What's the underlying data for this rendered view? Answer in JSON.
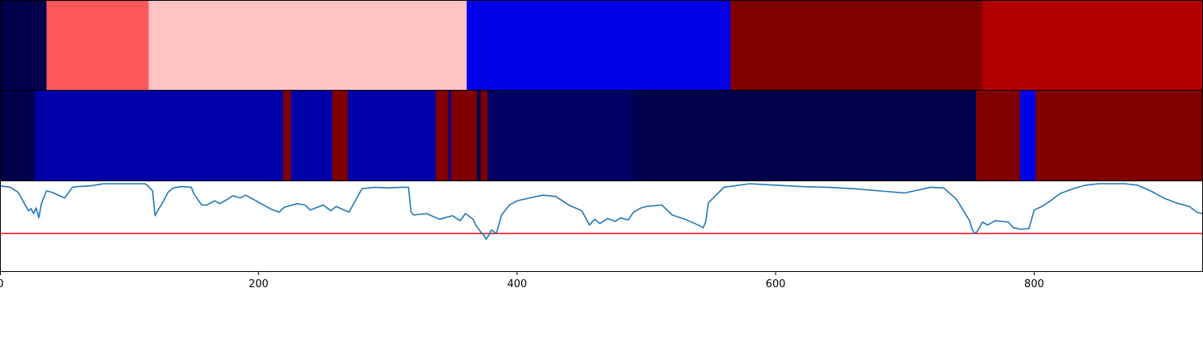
{
  "chart_data": [
    {
      "type": "heatmap",
      "xlim": [
        0,
        930
      ],
      "colormap": "seismic",
      "segments": [
        {
          "start": 0,
          "end": 36,
          "value": 0.02,
          "color": "#00004c"
        },
        {
          "start": 36,
          "end": 115,
          "value": 0.83,
          "color": "#ff5858"
        },
        {
          "start": 115,
          "end": 361,
          "value": 0.62,
          "color": "#ffc3c3"
        },
        {
          "start": 361,
          "end": 565,
          "value": 0.2,
          "color": "#0000e8"
        },
        {
          "start": 565,
          "end": 760,
          "value": 0.99,
          "color": "#800000"
        },
        {
          "start": 760,
          "end": 930,
          "value": 0.92,
          "color": "#b20000"
        }
      ]
    },
    {
      "type": "heatmap",
      "xlim": [
        0,
        930
      ],
      "colormap": "seismic",
      "segments": [
        {
          "start": 0,
          "end": 27,
          "value": 0.02,
          "color": "#00004c"
        },
        {
          "start": 27,
          "end": 219,
          "value": 0.1,
          "color": "#0000a8"
        },
        {
          "start": 219,
          "end": 225,
          "value": 0.99,
          "color": "#800000"
        },
        {
          "start": 225,
          "end": 257,
          "value": 0.1,
          "color": "#0000a8"
        },
        {
          "start": 257,
          "end": 269,
          "value": 0.99,
          "color": "#800000"
        },
        {
          "start": 269,
          "end": 337,
          "value": 0.1,
          "color": "#0000a8"
        },
        {
          "start": 337,
          "end": 347,
          "value": 0.99,
          "color": "#800000"
        },
        {
          "start": 347,
          "end": 349,
          "value": 0.08,
          "color": "#000096"
        },
        {
          "start": 349,
          "end": 369,
          "value": 0.99,
          "color": "#800000"
        },
        {
          "start": 369,
          "end": 372,
          "value": 0.02,
          "color": "#00004c"
        },
        {
          "start": 372,
          "end": 377,
          "value": 0.99,
          "color": "#800000"
        },
        {
          "start": 377,
          "end": 490,
          "value": 0.05,
          "color": "#000064"
        },
        {
          "start": 490,
          "end": 755,
          "value": 0.02,
          "color": "#00004c"
        },
        {
          "start": 755,
          "end": 789,
          "value": 0.99,
          "color": "#800000"
        },
        {
          "start": 789,
          "end": 801,
          "value": 0.2,
          "color": "#0000e8"
        },
        {
          "start": 801,
          "end": 930,
          "value": 0.99,
          "color": "#800000"
        }
      ]
    },
    {
      "type": "line",
      "xlim": [
        0,
        930
      ],
      "ylim": [
        0,
        1
      ],
      "line_color": "#1f77b4",
      "threshold": 0.3,
      "threshold_color": "#e41a1c",
      "x": [
        0,
        8,
        14,
        18,
        22,
        24,
        26,
        28,
        30,
        32,
        36,
        40,
        50,
        56,
        60,
        70,
        80,
        90,
        100,
        108,
        112,
        114,
        118,
        120,
        122,
        126,
        130,
        134,
        140,
        148,
        150,
        156,
        160,
        166,
        170,
        176,
        180,
        186,
        190,
        200,
        210,
        216,
        220,
        230,
        236,
        240,
        250,
        256,
        260,
        270,
        280,
        290,
        300,
        310,
        316,
        318,
        320,
        330,
        340,
        350,
        356,
        360,
        366,
        368,
        372,
        374,
        376,
        378,
        380,
        384,
        388,
        394,
        400,
        410,
        420,
        430,
        440,
        450,
        456,
        460,
        464,
        470,
        476,
        480,
        486,
        490,
        496,
        500,
        512,
        520,
        530,
        540,
        544,
        546,
        548,
        560,
        580,
        600,
        620,
        640,
        660,
        680,
        700,
        710,
        720,
        730,
        740,
        746,
        750,
        752,
        754,
        756,
        760,
        764,
        770,
        780,
        784,
        790,
        796,
        800,
        806,
        812,
        820,
        830,
        840,
        850,
        860,
        870,
        880,
        890,
        900,
        910,
        920,
        926,
        930
      ],
      "y": [
        0.97,
        0.95,
        0.88,
        0.75,
        0.62,
        0.65,
        0.58,
        0.66,
        0.52,
        0.72,
        0.9,
        0.88,
        0.8,
        0.95,
        0.96,
        0.97,
        1.0,
        1.0,
        1.0,
        1.0,
        1.0,
        0.98,
        0.9,
        0.55,
        0.62,
        0.74,
        0.88,
        0.94,
        0.96,
        0.95,
        0.86,
        0.7,
        0.7,
        0.76,
        0.72,
        0.78,
        0.83,
        0.8,
        0.84,
        0.74,
        0.64,
        0.6,
        0.67,
        0.72,
        0.7,
        0.63,
        0.7,
        0.62,
        0.68,
        0.6,
        0.93,
        0.95,
        0.94,
        0.95,
        0.95,
        0.6,
        0.56,
        0.58,
        0.5,
        0.55,
        0.48,
        0.58,
        0.5,
        0.42,
        0.32,
        0.28,
        0.22,
        0.27,
        0.35,
        0.3,
        0.56,
        0.7,
        0.76,
        0.8,
        0.84,
        0.82,
        0.7,
        0.62,
        0.42,
        0.5,
        0.44,
        0.51,
        0.47,
        0.52,
        0.49,
        0.6,
        0.66,
        0.68,
        0.7,
        0.56,
        0.5,
        0.42,
        0.38,
        0.47,
        0.73,
        0.95,
        1.0,
        0.98,
        0.96,
        0.95,
        0.93,
        0.9,
        0.87,
        0.91,
        0.95,
        0.94,
        0.78,
        0.6,
        0.48,
        0.36,
        0.3,
        0.33,
        0.46,
        0.42,
        0.48,
        0.46,
        0.38,
        0.36,
        0.37,
        0.63,
        0.68,
        0.75,
        0.86,
        0.93,
        0.98,
        1.0,
        1.0,
        1.0,
        0.98,
        0.9,
        0.8,
        0.73,
        0.68,
        0.6,
        0.58
      ]
    }
  ],
  "x_axis": {
    "ticks": [
      0,
      200,
      400,
      600,
      800
    ],
    "tick_labels": [
      "0",
      "200",
      "400",
      "600",
      "800"
    ]
  }
}
